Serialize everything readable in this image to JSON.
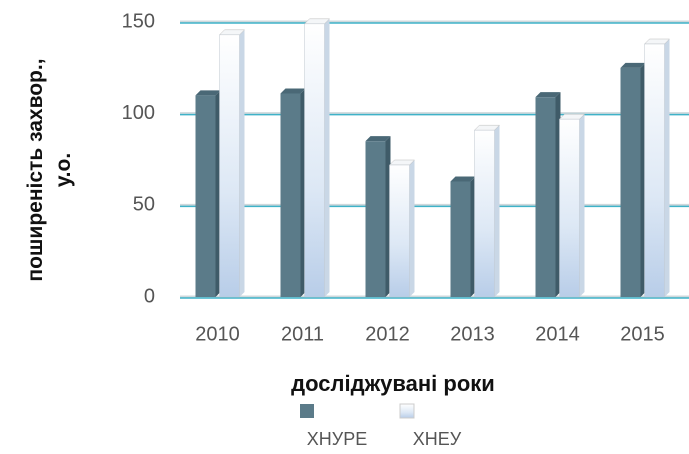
{
  "chart_data": {
    "type": "bar",
    "xlabel": "досліджувані роки",
    "ylabel": "поширеність захвор., у.о.",
    "categories": [
      "2010",
      "2011",
      "2012",
      "2013",
      "2014",
      "2015"
    ],
    "series": [
      {
        "name": "ХНУРЕ",
        "color": "#5b7b89",
        "values": [
          110,
          111,
          85,
          63,
          109,
          125
        ]
      },
      {
        "name": "ХНЕУ",
        "color": "#dde8f5",
        "values": [
          143,
          149,
          72,
          91,
          97,
          138
        ]
      }
    ],
    "ylim": [
      0,
      150
    ],
    "yticks": [
      0,
      50,
      100,
      150
    ],
    "grid": true
  }
}
